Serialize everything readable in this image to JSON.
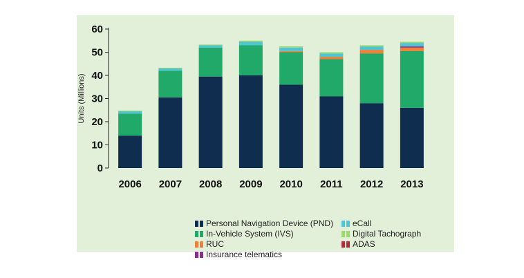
{
  "chart_data": {
    "type": "bar",
    "stacked": true,
    "categories": [
      "2006",
      "2007",
      "2008",
      "2009",
      "2010",
      "2011",
      "2012",
      "2013"
    ],
    "ylabel": "Units (Millions)",
    "xlabel": "",
    "title": "",
    "ylim": [
      0,
      60
    ],
    "yticks": [
      0,
      10,
      20,
      30,
      40,
      50,
      60
    ],
    "grid": false,
    "legend_position": "bottom",
    "series": [
      {
        "name": "Personal Navigation Device (PND)",
        "color": "#0f2d4e",
        "values": [
          14,
          30.5,
          39.5,
          40,
          36,
          31,
          28,
          26
        ]
      },
      {
        "name": "In-Vehicle System (IVS)",
        "color": "#20a968",
        "values": [
          9.5,
          11.5,
          12.5,
          13,
          14,
          16,
          21.5,
          24.5
        ]
      },
      {
        "name": "RUC",
        "color": "#f07e34",
        "values": [
          0,
          0,
          0,
          0,
          0.5,
          1,
          1.5,
          1.5
        ]
      },
      {
        "name": "Insurance telematics",
        "color": "#8b2a8f",
        "values": [
          0,
          0,
          0,
          0,
          0,
          0,
          0,
          0.5
        ]
      },
      {
        "name": "eCall",
        "color": "#4fc4d3",
        "values": [
          1,
          1,
          1,
          1.5,
          1.5,
          1.5,
          1.5,
          1.5
        ]
      },
      {
        "name": "Digital Tachograph",
        "color": "#9cd86a",
        "values": [
          0.3,
          0.3,
          0.3,
          0.5,
          0.5,
          0.5,
          0.5,
          0.5
        ]
      },
      {
        "name": "ADAS",
        "color": "#b5283a",
        "values": [
          0,
          0,
          0,
          0,
          0,
          0,
          0,
          0
        ]
      }
    ],
    "legend_order": [
      "Personal Navigation Device (PND)",
      "eCall",
      "In-Vehicle System (IVS)",
      "Digital Tachograph",
      "RUC",
      "ADAS",
      "Insurance telematics"
    ]
  }
}
